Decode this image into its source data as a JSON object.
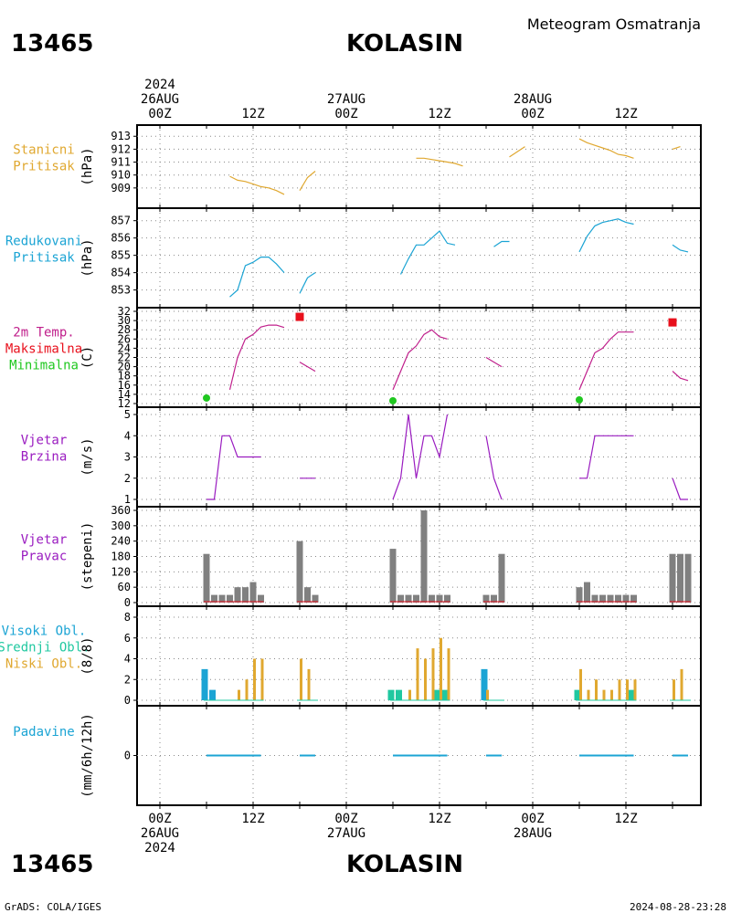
{
  "header": {
    "station_id": "13465",
    "station_name": "KOLASIN",
    "title": "Meteogram Osmatranja"
  },
  "footer": {
    "left": "GrADS: COLA/IGES",
    "right": "2024-08-28-23:28"
  },
  "time_axis": {
    "labels": [
      {
        "h": 0,
        "lines": [
          "2024",
          "26AUG",
          "00Z"
        ],
        "bottom": [
          "00Z",
          "26AUG",
          "2024"
        ]
      },
      {
        "h": 12,
        "lines": [
          "12Z"
        ],
        "bottom": [
          "12Z"
        ]
      },
      {
        "h": 24,
        "lines": [
          "27AUG",
          "00Z"
        ],
        "bottom": [
          "00Z",
          "27AUG"
        ]
      },
      {
        "h": 36,
        "lines": [
          "12Z"
        ],
        "bottom": [
          "12Z"
        ]
      },
      {
        "h": 48,
        "lines": [
          "28AUG",
          "00Z"
        ],
        "bottom": [
          "00Z",
          "28AUG"
        ]
      },
      {
        "h": 60,
        "lines": [
          "12Z"
        ],
        "bottom": [
          "12Z"
        ]
      }
    ]
  },
  "colors": {
    "pressure": "#e0a830",
    "reduced": "#1ba4d4",
    "temp": "#c0208c",
    "max": "#e8101c",
    "min": "#20c820",
    "wind": "#9a1cc0",
    "dir_bar": "#808080",
    "high_cloud": "#1ba4d4",
    "mid_cloud": "#20c8a0",
    "low_cloud": "#e0a830",
    "precip": "#1ba4d4"
  },
  "panel_labels": {
    "stanicni": {
      "lines": [
        "Stanicni",
        "Pritisak"
      ],
      "unit": "(hPa)"
    },
    "redukovani": {
      "lines": [
        "Redukovani",
        "Pritisak"
      ],
      "unit": "(hPa)"
    },
    "temp": {
      "lines": [
        "2m Temp.",
        "Maksimalna",
        "Minimalna"
      ],
      "unit": "(C)"
    },
    "wind_speed": {
      "lines": [
        "Vjetar",
        "Brzina"
      ],
      "unit": "(m/s)"
    },
    "wind_dir": {
      "lines": [
        "Vjetar",
        "Pravac"
      ],
      "unit": "(stepeni)"
    },
    "clouds": {
      "lines": [
        "Visoki Obl.",
        "Srednji Obl.",
        "Niski Obl."
      ],
      "unit": "(8/8)"
    },
    "precip": {
      "lines": [
        "Padavine"
      ],
      "unit": "(mm/6h/12h)"
    }
  },
  "chart_data": [
    {
      "type": "line",
      "id": "stanicni",
      "ylim": [
        908,
        913.3
      ],
      "yticks": [
        909,
        910,
        911,
        912,
        913
      ],
      "series": [
        {
          "segments": [
            [
              [
                9,
                909.9
              ],
              [
                10,
                909.6
              ],
              [
                11,
                909.5
              ],
              [
                12,
                909.3
              ],
              [
                13,
                909.1
              ],
              [
                14,
                909.0
              ],
              [
                15,
                908.8
              ],
              [
                16,
                908.5
              ]
            ],
            [
              [
                18,
                908.8
              ],
              [
                19,
                909.8
              ],
              [
                20,
                910.3
              ]
            ],
            [
              [
                33,
                911.3
              ],
              [
                34,
                911.3
              ],
              [
                35,
                911.2
              ],
              [
                36,
                911.1
              ],
              [
                37,
                911.0
              ],
              [
                38,
                910.9
              ],
              [
                39,
                910.7
              ]
            ],
            [
              [
                45,
                911.4
              ],
              [
                46,
                911.8
              ],
              [
                47,
                912.2
              ]
            ],
            [
              [
                54,
                912.8
              ],
              [
                55,
                912.5
              ],
              [
                56,
                912.3
              ],
              [
                57,
                912.1
              ],
              [
                58,
                911.9
              ],
              [
                59,
                911.6
              ],
              [
                60,
                911.5
              ],
              [
                61,
                911.3
              ]
            ],
            [
              [
                66,
                912.0
              ],
              [
                67,
                912.2
              ]
            ]
          ]
        }
      ]
    },
    {
      "type": "line",
      "id": "redukovani",
      "ylim": [
        852.4,
        857.3
      ],
      "yticks": [
        853,
        854,
        855,
        856,
        857
      ],
      "series": [
        {
          "segments": [
            [
              [
                9,
                852.6
              ],
              [
                10,
                853.0
              ],
              [
                11,
                854.4
              ],
              [
                12,
                854.6
              ],
              [
                13,
                854.9
              ],
              [
                14,
                854.9
              ],
              [
                15,
                854.5
              ],
              [
                16,
                854.0
              ]
            ],
            [
              [
                18,
                852.8
              ],
              [
                19,
                853.7
              ],
              [
                20,
                854.0
              ]
            ],
            [
              [
                31,
                853.9
              ],
              [
                32,
                854.8
              ],
              [
                33,
                855.6
              ],
              [
                34,
                855.6
              ],
              [
                35,
                856.0
              ],
              [
                36,
                856.4
              ],
              [
                37,
                855.7
              ],
              [
                38,
                855.6
              ]
            ],
            [
              [
                43,
                855.5
              ],
              [
                44,
                855.8
              ],
              [
                45,
                855.8
              ]
            ],
            [
              [
                54,
                855.2
              ],
              [
                55,
                856.1
              ],
              [
                56,
                856.7
              ],
              [
                57,
                856.9
              ],
              [
                58,
                857.0
              ],
              [
                59,
                857.1
              ],
              [
                60,
                856.9
              ],
              [
                61,
                856.8
              ]
            ],
            [
              [
                66,
                855.6
              ],
              [
                67,
                855.3
              ],
              [
                68,
                855.2
              ]
            ]
          ]
        }
      ]
    },
    {
      "type": "line",
      "id": "temp",
      "ylim": [
        12,
        32
      ],
      "yticks": [
        12,
        14,
        16,
        18,
        20,
        22,
        24,
        26,
        28,
        30,
        32
      ],
      "series": [
        {
          "segments": [
            [
              [
                9,
                15.0
              ],
              [
                10,
                22.0
              ],
              [
                11,
                26.0
              ],
              [
                12,
                27.0
              ],
              [
                13,
                28.6
              ],
              [
                14,
                29.0
              ],
              [
                15,
                29.0
              ],
              [
                16,
                28.5
              ]
            ],
            [
              [
                18,
                21.0
              ],
              [
                19,
                20.0
              ],
              [
                20,
                19.0
              ]
            ],
            [
              [
                30,
                15.0
              ],
              [
                31,
                19.0
              ],
              [
                32,
                23.0
              ],
              [
                33,
                24.5
              ],
              [
                34,
                27.0
              ],
              [
                35,
                28.0
              ],
              [
                36,
                26.5
              ],
              [
                37,
                26.0
              ]
            ],
            [
              [
                42,
                22.0
              ],
              [
                43,
                21.0
              ],
              [
                44,
                20.0
              ]
            ],
            [
              [
                54,
                15.0
              ],
              [
                55,
                19.0
              ],
              [
                56,
                23.0
              ],
              [
                57,
                24.0
              ],
              [
                58,
                26.0
              ],
              [
                59,
                27.5
              ],
              [
                60,
                27.5
              ],
              [
                61,
                27.5
              ]
            ],
            [
              [
                66,
                19.0
              ],
              [
                67,
                17.5
              ],
              [
                68,
                17.0
              ]
            ]
          ]
        },
        {
          "markers": "max",
          "points": [
            [
              18,
              30.8
            ],
            [
              66,
              29.6
            ]
          ]
        },
        {
          "markers": "min",
          "points": [
            [
              6,
              13.2
            ],
            [
              30,
              12.6
            ],
            [
              54,
              12.8
            ]
          ]
        }
      ]
    },
    {
      "type": "line",
      "id": "wind_speed",
      "ylim": [
        1,
        5
      ],
      "yticks": [
        1,
        2,
        3,
        4,
        5
      ],
      "series": [
        {
          "segments": [
            [
              [
                6,
                1
              ],
              [
                7,
                1
              ],
              [
                8,
                4
              ],
              [
                9,
                4
              ],
              [
                10,
                3
              ],
              [
                11,
                3
              ],
              [
                12,
                3
              ],
              [
                13,
                3
              ]
            ],
            [
              [
                18,
                2
              ],
              [
                19,
                2
              ],
              [
                20,
                2
              ]
            ],
            [
              [
                30,
                1
              ],
              [
                31,
                2
              ],
              [
                32,
                5
              ],
              [
                33,
                2
              ],
              [
                34,
                4
              ],
              [
                35,
                4
              ],
              [
                36,
                3
              ],
              [
                37,
                5
              ]
            ],
            [
              [
                42,
                4
              ],
              [
                43,
                2
              ],
              [
                44,
                1
              ]
            ],
            [
              [
                54,
                2
              ],
              [
                55,
                2
              ],
              [
                56,
                4
              ],
              [
                57,
                4
              ],
              [
                58,
                4
              ],
              [
                59,
                4
              ],
              [
                60,
                4
              ],
              [
                61,
                4
              ]
            ],
            [
              [
                66,
                2
              ],
              [
                67,
                1
              ],
              [
                68,
                1
              ]
            ]
          ]
        }
      ]
    },
    {
      "type": "bar",
      "id": "wind_dir",
      "ylim": [
        0,
        360
      ],
      "yticks": [
        0,
        60,
        120,
        180,
        240,
        300,
        360
      ],
      "x": [
        6,
        7,
        8,
        9,
        10,
        11,
        12,
        13,
        18,
        19,
        20,
        30,
        31,
        32,
        33,
        34,
        35,
        36,
        37,
        42,
        43,
        44,
        54,
        55,
        56,
        57,
        58,
        59,
        60,
        61,
        66,
        67,
        68
      ],
      "values": [
        190,
        30,
        30,
        30,
        60,
        60,
        80,
        30,
        240,
        60,
        30,
        210,
        30,
        30,
        30,
        360,
        30,
        30,
        30,
        30,
        30,
        190,
        60,
        80,
        30,
        30,
        30,
        30,
        30,
        30,
        190,
        190,
        190
      ]
    },
    {
      "type": "bar",
      "id": "clouds",
      "ylim": [
        0,
        8
      ],
      "yticks": [
        0,
        2,
        4,
        6,
        8
      ],
      "series": [
        {
          "name": "Visoki Obl.",
          "points": [
            [
              6,
              3
            ],
            [
              7,
              1
            ],
            [
              42,
              3
            ]
          ]
        },
        {
          "name": "Srednji Obl.",
          "points": [
            [
              30,
              1
            ],
            [
              31,
              1
            ],
            [
              36,
              1
            ],
            [
              37,
              1
            ],
            [
              54,
              1
            ],
            [
              61,
              1
            ]
          ]
        },
        {
          "name": "Niski Obl.",
          "points": [
            [
              10,
              1
            ],
            [
              11,
              2
            ],
            [
              12,
              4
            ],
            [
              13,
              4
            ],
            [
              18,
              4
            ],
            [
              19,
              3
            ],
            [
              32,
              1
            ],
            [
              33,
              5
            ],
            [
              34,
              4
            ],
            [
              35,
              5
            ],
            [
              36,
              6
            ],
            [
              37,
              5
            ],
            [
              42,
              1
            ],
            [
              54,
              3
            ],
            [
              55,
              1
            ],
            [
              56,
              2
            ],
            [
              57,
              1
            ],
            [
              58,
              1
            ],
            [
              59,
              2
            ],
            [
              60,
              2
            ],
            [
              61,
              2
            ],
            [
              66,
              2
            ],
            [
              67,
              3
            ]
          ]
        }
      ]
    },
    {
      "type": "line",
      "id": "precip",
      "ylim": [
        -4,
        4
      ],
      "yticks": [
        0
      ],
      "series": [
        {
          "segments": [
            [
              [
                6,
                0
              ],
              [
                13,
                0
              ]
            ],
            [
              [
                18,
                0
              ],
              [
                20,
                0
              ]
            ],
            [
              [
                30,
                0
              ],
              [
                37,
                0
              ]
            ],
            [
              [
                42,
                0
              ],
              [
                44,
                0
              ]
            ],
            [
              [
                54,
                0
              ],
              [
                61,
                0
              ]
            ],
            [
              [
                66,
                0
              ],
              [
                68,
                0
              ]
            ]
          ]
        }
      ]
    }
  ]
}
